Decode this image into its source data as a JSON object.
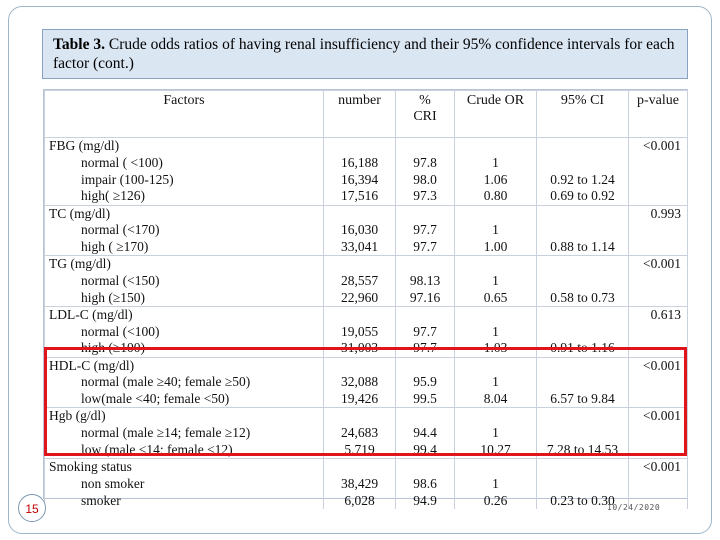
{
  "title": {
    "prefix": "Table 3.",
    "text": "Crude odds ratios of having renal insufficiency and their 95% confidence intervals for each factor (cont.)"
  },
  "table": {
    "headers": [
      "Factors",
      "number",
      "% CRI",
      "Crude OR",
      "95% CI",
      "p-value"
    ],
    "rows": [
      {
        "factor": "FBG (mg/dl)",
        "group": true,
        "number": "",
        "pct": "",
        "or": "",
        "ci": "",
        "p": "<0.001"
      },
      {
        "factor": "normal ( <100)",
        "group": false,
        "number": "16,188",
        "pct": "97.8",
        "or": "1",
        "ci": "",
        "p": ""
      },
      {
        "factor": "impair (100-125)",
        "group": false,
        "number": "16,394",
        "pct": "98.0",
        "or": "1.06",
        "ci": "0.92 to 1.24",
        "p": ""
      },
      {
        "factor": "high( ≥126)",
        "group": false,
        "number": "17,516",
        "pct": "97.3",
        "or": "0.80",
        "ci": "0.69 to 0.92",
        "p": ""
      },
      {
        "factor": "TC (mg/dl)",
        "group": true,
        "number": "",
        "pct": "",
        "or": "",
        "ci": "",
        "p": "0.993"
      },
      {
        "factor": "normal (<170)",
        "group": false,
        "number": "16,030",
        "pct": "97.7",
        "or": "1",
        "ci": "",
        "p": ""
      },
      {
        "factor": "high ( ≥170)",
        "group": false,
        "number": "33,041",
        "pct": "97.7",
        "or": "1.00",
        "ci": "0.88 to 1.14",
        "p": ""
      },
      {
        "factor": "TG (mg/dl)",
        "group": true,
        "number": "",
        "pct": "",
        "or": "",
        "ci": "",
        "p": "<0.001"
      },
      {
        "factor": "normal (<150)",
        "group": false,
        "number": "28,557",
        "pct": "98.13",
        "or": "1",
        "ci": "",
        "p": ""
      },
      {
        "factor": "high (≥150)",
        "group": false,
        "number": "22,960",
        "pct": "97.16",
        "or": "0.65",
        "ci": "0.58 to 0.73",
        "p": ""
      },
      {
        "factor": "LDL-C (mg/dl)",
        "group": true,
        "number": "",
        "pct": "",
        "or": "",
        "ci": "",
        "p": "0.613"
      },
      {
        "factor": "normal (<100)",
        "group": false,
        "number": "19,055",
        "pct": "97.7",
        "or": "1",
        "ci": "",
        "p": ""
      },
      {
        "factor": "high (≥100)",
        "group": false,
        "number": "31,003",
        "pct": "97.7",
        "or": "1.03",
        "ci": "0.91 to 1.16",
        "p": ""
      },
      {
        "factor": "HDL-C (mg/dl)",
        "group": true,
        "number": "",
        "pct": "",
        "or": "",
        "ci": "",
        "p": "<0.001"
      },
      {
        "factor": "normal (male ≥40; female ≥50)",
        "group": false,
        "number": "32,088",
        "pct": "95.9",
        "or": "1",
        "ci": "",
        "p": ""
      },
      {
        "factor": "low(male <40; female <50)",
        "group": false,
        "number": "19,426",
        "pct": "99.5",
        "or": "8.04",
        "ci": "6.57 to 9.84",
        "p": ""
      },
      {
        "factor": "Hgb (g/dl)",
        "group": true,
        "number": "",
        "pct": "",
        "or": "",
        "ci": "",
        "p": "<0.001"
      },
      {
        "factor": "normal (male ≥14; female ≥12)",
        "group": false,
        "number": "24,683",
        "pct": "94.4",
        "or": "1",
        "ci": "",
        "p": ""
      },
      {
        "factor": "low (male <14; female <12)",
        "group": false,
        "number": "5,719",
        "pct": "99.4",
        "or": "10.27",
        "ci": "7.28 to 14.53",
        "p": ""
      },
      {
        "factor": "Smoking status",
        "group": true,
        "number": "",
        "pct": "",
        "or": "",
        "ci": "",
        "p": "<0.001"
      },
      {
        "factor": "non smoker",
        "group": false,
        "number": "38,429",
        "pct": "98.6",
        "or": "1",
        "ci": "",
        "p": ""
      },
      {
        "factor": "smoker",
        "group": false,
        "number": "6,028",
        "pct": "94.9",
        "or": "0.26",
        "ci": "0.23 to 0.30",
        "p": ""
      }
    ]
  },
  "highlight_color": "#e0141b",
  "slide_number": "15",
  "date": "10/24/2020"
}
